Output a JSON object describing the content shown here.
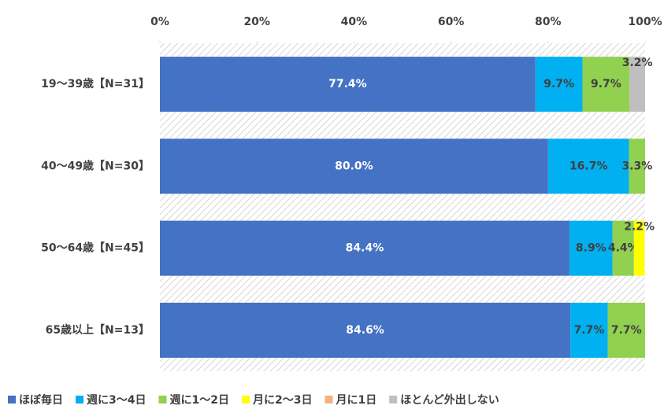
{
  "chart_data": {
    "type": "stacked-barh",
    "categories": [
      "19〜39歳【N=31】",
      "40〜49歳【N=30】",
      "50〜64歳【N=45】",
      "65歳以上【N=13】"
    ],
    "series": [
      {
        "name": "ほぼ毎日",
        "color": "#4472c4",
        "values": [
          77.4,
          80.0,
          84.4,
          84.6
        ],
        "value_labels": [
          "77.4%",
          "80.0%",
          "84.4%",
          "84.6%"
        ]
      },
      {
        "name": "週に3〜4日",
        "color": "#00b0f0",
        "values": [
          9.7,
          16.7,
          8.9,
          7.7
        ],
        "value_labels": [
          "9.7%",
          "16.7%",
          "8.9%",
          "7.7%"
        ]
      },
      {
        "name": "週に1〜2日",
        "color": "#92d050",
        "values": [
          9.7,
          3.3,
          4.4,
          7.7
        ],
        "value_labels": [
          "9.7%",
          "3.3%",
          "4.4%",
          "7.7%"
        ]
      },
      {
        "name": "月に2〜3日",
        "color": "#ffff00",
        "values": [
          null,
          null,
          2.2,
          null
        ],
        "value_labels": [
          null,
          null,
          "2.2%",
          null
        ]
      },
      {
        "name": "月に1日",
        "color": "#f4b183",
        "values": [
          null,
          null,
          null,
          null
        ],
        "value_labels": [
          null,
          null,
          null,
          null
        ]
      },
      {
        "name": "ほとんど外出しない",
        "color": "#bfbfbf",
        "values": [
          3.2,
          null,
          null,
          null
        ],
        "value_labels": [
          "3.2%",
          null,
          null,
          null
        ]
      }
    ],
    "xlim": [
      0,
      100
    ],
    "xticks": [
      {
        "value": 0,
        "label": "0%"
      },
      {
        "value": 20,
        "label": "20%"
      },
      {
        "value": 40,
        "label": "40%"
      },
      {
        "value": 60,
        "label": "60%"
      },
      {
        "value": 80,
        "label": "80%"
      },
      {
        "value": 100,
        "label": "100%"
      }
    ],
    "legend": "bottom"
  }
}
